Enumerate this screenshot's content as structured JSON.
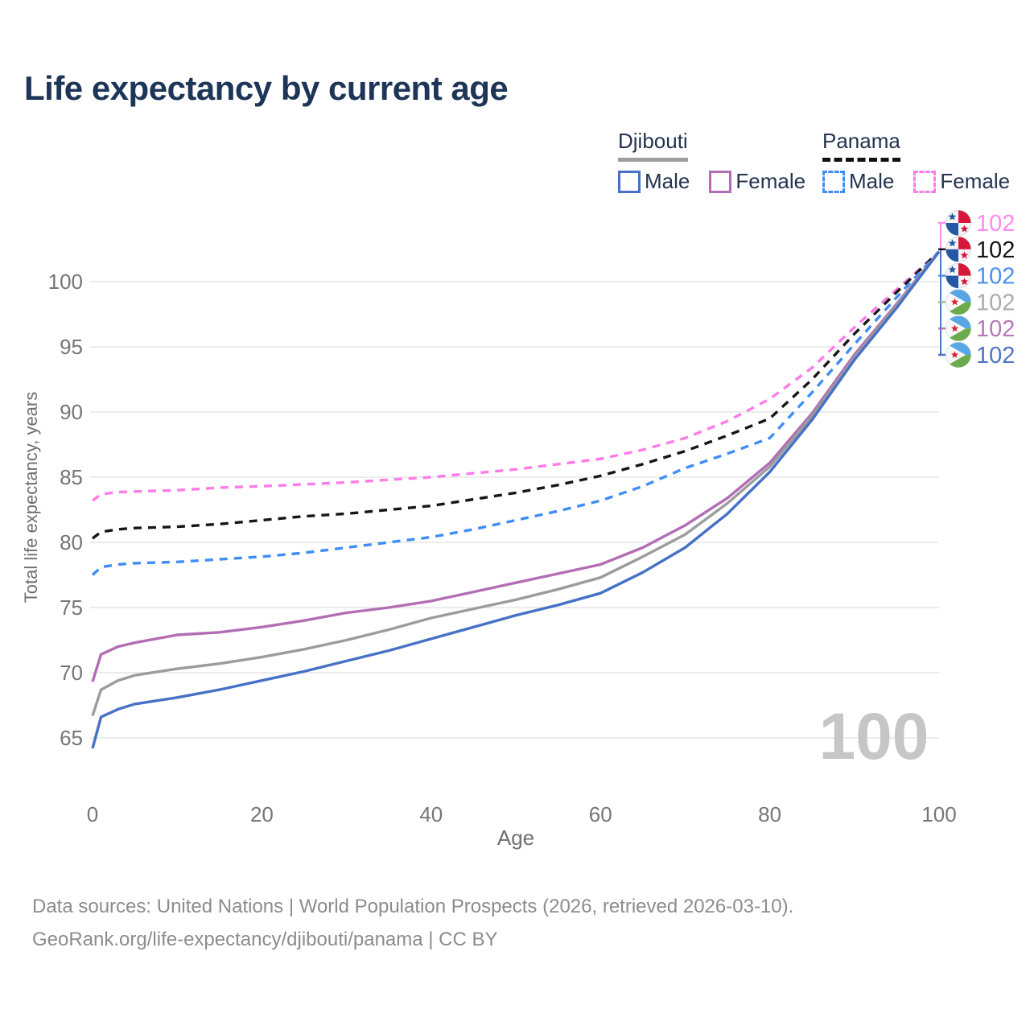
{
  "title": "Life expectancy by current age",
  "legend": {
    "groups": [
      {
        "header": "Djibouti",
        "line_style": "solid",
        "underline_color": "#9e9e9e",
        "items": [
          {
            "label": "Male",
            "color": "#4671c6"
          },
          {
            "label": "Female",
            "color": "#b26db4"
          }
        ]
      },
      {
        "header": "Panama",
        "line_style": "dashed",
        "underline_color": "#111111",
        "items": [
          {
            "label": "Male",
            "color": "#3f8df6"
          },
          {
            "label": "Female",
            "color": "#ff7ce8"
          }
        ]
      }
    ]
  },
  "watermark_age": "100",
  "right_labels": [
    {
      "value": "102",
      "color": "#ff8af0",
      "flag": "panama-flag-icon"
    },
    {
      "value": "102",
      "color": "#141414",
      "flag": "panama-flag-icon"
    },
    {
      "value": "102",
      "color": "#4a8ff2",
      "flag": "panama-flag-icon"
    },
    {
      "value": "102",
      "color": "#acacac",
      "flag": "djibouti-flag-icon"
    },
    {
      "value": "102",
      "color": "#b478b8",
      "flag": "djibouti-flag-icon"
    },
    {
      "value": "102",
      "color": "#4d74c4",
      "flag": "djibouti-flag-icon"
    }
  ],
  "footer": {
    "line1": "Data sources: United Nations | World Population Prospects (2026, retrieved 2026-03-10).",
    "line2": "GeoRank.org/life-expectancy/djibouti/panama | CC BY"
  },
  "flag_colors": {
    "panama_red": "#d5173a",
    "panama_blue": "#2457a4",
    "djibouti_blue": "#58a7e4",
    "djibouti_green": "#6cab4c",
    "djibouti_star": "#dd2033"
  },
  "chart_data": {
    "type": "line",
    "title": "Life expectancy by current age",
    "xlabel": "Age",
    "ylabel": "Total life expectancy, years",
    "x_ticks": [
      0,
      20,
      40,
      60,
      80,
      100
    ],
    "y_ticks": [
      65,
      70,
      75,
      80,
      85,
      90,
      95,
      100
    ],
    "xlim": [
      0,
      100
    ],
    "ylim": [
      63,
      103
    ],
    "grid": "horizontal",
    "legend_position": "top-right",
    "series": [
      {
        "name": "Panama Female",
        "country": "Panama",
        "sex": "female",
        "color": "#ff7ce8",
        "dash": true,
        "points": [
          [
            0,
            83.2
          ],
          [
            1,
            83.7
          ],
          [
            3,
            83.85
          ],
          [
            5,
            83.9
          ],
          [
            10,
            84.0
          ],
          [
            15,
            84.2
          ],
          [
            20,
            84.3
          ],
          [
            25,
            84.45
          ],
          [
            30,
            84.6
          ],
          [
            35,
            84.8
          ],
          [
            40,
            85.0
          ],
          [
            45,
            85.3
          ],
          [
            50,
            85.6
          ],
          [
            55,
            86.0
          ],
          [
            60,
            86.4
          ],
          [
            65,
            87.1
          ],
          [
            70,
            88.0
          ],
          [
            75,
            89.3
          ],
          [
            80,
            91.0
          ],
          [
            85,
            93.4
          ],
          [
            90,
            96.5
          ],
          [
            95,
            99.4
          ],
          [
            100,
            102.3
          ]
        ]
      },
      {
        "name": "Panama (both sexes)",
        "country": "Panama",
        "sex": "both",
        "color": "#161616",
        "dash": true,
        "points": [
          [
            0,
            80.3
          ],
          [
            1,
            80.8
          ],
          [
            3,
            81.0
          ],
          [
            5,
            81.1
          ],
          [
            10,
            81.2
          ],
          [
            15,
            81.4
          ],
          [
            20,
            81.7
          ],
          [
            25,
            82.0
          ],
          [
            30,
            82.2
          ],
          [
            35,
            82.5
          ],
          [
            40,
            82.8
          ],
          [
            45,
            83.3
          ],
          [
            50,
            83.8
          ],
          [
            55,
            84.4
          ],
          [
            60,
            85.1
          ],
          [
            65,
            86.0
          ],
          [
            70,
            87.0
          ],
          [
            75,
            88.2
          ],
          [
            80,
            89.5
          ],
          [
            85,
            92.5
          ],
          [
            90,
            96.0
          ],
          [
            95,
            99.2
          ],
          [
            100,
            102.3
          ]
        ]
      },
      {
        "name": "Panama Male",
        "country": "Panama",
        "sex": "male",
        "color": "#3f8df6",
        "dash": true,
        "points": [
          [
            0,
            77.5
          ],
          [
            1,
            78.1
          ],
          [
            3,
            78.3
          ],
          [
            5,
            78.4
          ],
          [
            10,
            78.5
          ],
          [
            15,
            78.7
          ],
          [
            20,
            78.9
          ],
          [
            25,
            79.2
          ],
          [
            30,
            79.6
          ],
          [
            35,
            80.0
          ],
          [
            40,
            80.4
          ],
          [
            45,
            81.0
          ],
          [
            50,
            81.7
          ],
          [
            55,
            82.4
          ],
          [
            60,
            83.2
          ],
          [
            65,
            84.3
          ],
          [
            70,
            85.7
          ],
          [
            75,
            86.8
          ],
          [
            80,
            88.0
          ],
          [
            85,
            91.5
          ],
          [
            90,
            95.2
          ],
          [
            95,
            98.8
          ],
          [
            100,
            102.3
          ]
        ]
      },
      {
        "name": "Djibouti Female",
        "country": "Djibouti",
        "sex": "female",
        "color": "#b26db4",
        "dash": false,
        "points": [
          [
            0,
            69.3
          ],
          [
            1,
            71.4
          ],
          [
            3,
            72.0
          ],
          [
            5,
            72.3
          ],
          [
            10,
            72.9
          ],
          [
            15,
            73.1
          ],
          [
            20,
            73.5
          ],
          [
            25,
            74.0
          ],
          [
            30,
            74.6
          ],
          [
            35,
            75.0
          ],
          [
            40,
            75.5
          ],
          [
            45,
            76.2
          ],
          [
            50,
            76.9
          ],
          [
            55,
            77.6
          ],
          [
            60,
            78.3
          ],
          [
            65,
            79.6
          ],
          [
            70,
            81.3
          ],
          [
            75,
            83.4
          ],
          [
            80,
            86.1
          ],
          [
            85,
            89.9
          ],
          [
            90,
            94.4
          ],
          [
            95,
            98.3
          ],
          [
            100,
            102.3
          ]
        ]
      },
      {
        "name": "Djibouti (both sexes)",
        "country": "Djibouti",
        "sex": "both",
        "color": "#9c9c9c",
        "dash": false,
        "points": [
          [
            0,
            66.7
          ],
          [
            1,
            68.7
          ],
          [
            3,
            69.4
          ],
          [
            5,
            69.8
          ],
          [
            10,
            70.3
          ],
          [
            15,
            70.7
          ],
          [
            20,
            71.2
          ],
          [
            25,
            71.8
          ],
          [
            30,
            72.5
          ],
          [
            35,
            73.3
          ],
          [
            40,
            74.2
          ],
          [
            45,
            74.9
          ],
          [
            50,
            75.6
          ],
          [
            55,
            76.4
          ],
          [
            60,
            77.3
          ],
          [
            65,
            78.9
          ],
          [
            70,
            80.6
          ],
          [
            75,
            83.0
          ],
          [
            80,
            85.8
          ],
          [
            85,
            89.7
          ],
          [
            90,
            94.2
          ],
          [
            95,
            98.2
          ],
          [
            100,
            102.3
          ]
        ]
      },
      {
        "name": "Djibouti Male",
        "country": "Djibouti",
        "sex": "male",
        "color": "#4671c6",
        "dash": false,
        "points": [
          [
            0,
            64.2
          ],
          [
            1,
            66.6
          ],
          [
            3,
            67.2
          ],
          [
            5,
            67.6
          ],
          [
            10,
            68.1
          ],
          [
            15,
            68.7
          ],
          [
            20,
            69.4
          ],
          [
            25,
            70.1
          ],
          [
            30,
            70.9
          ],
          [
            35,
            71.7
          ],
          [
            40,
            72.6
          ],
          [
            45,
            73.5
          ],
          [
            50,
            74.4
          ],
          [
            55,
            75.2
          ],
          [
            60,
            76.1
          ],
          [
            65,
            77.7
          ],
          [
            70,
            79.6
          ],
          [
            75,
            82.2
          ],
          [
            80,
            85.4
          ],
          [
            85,
            89.4
          ],
          [
            90,
            94.0
          ],
          [
            95,
            98.0
          ],
          [
            100,
            102.3
          ]
        ]
      }
    ],
    "end_value_labels": [
      102,
      102,
      102,
      102,
      102,
      102
    ]
  }
}
